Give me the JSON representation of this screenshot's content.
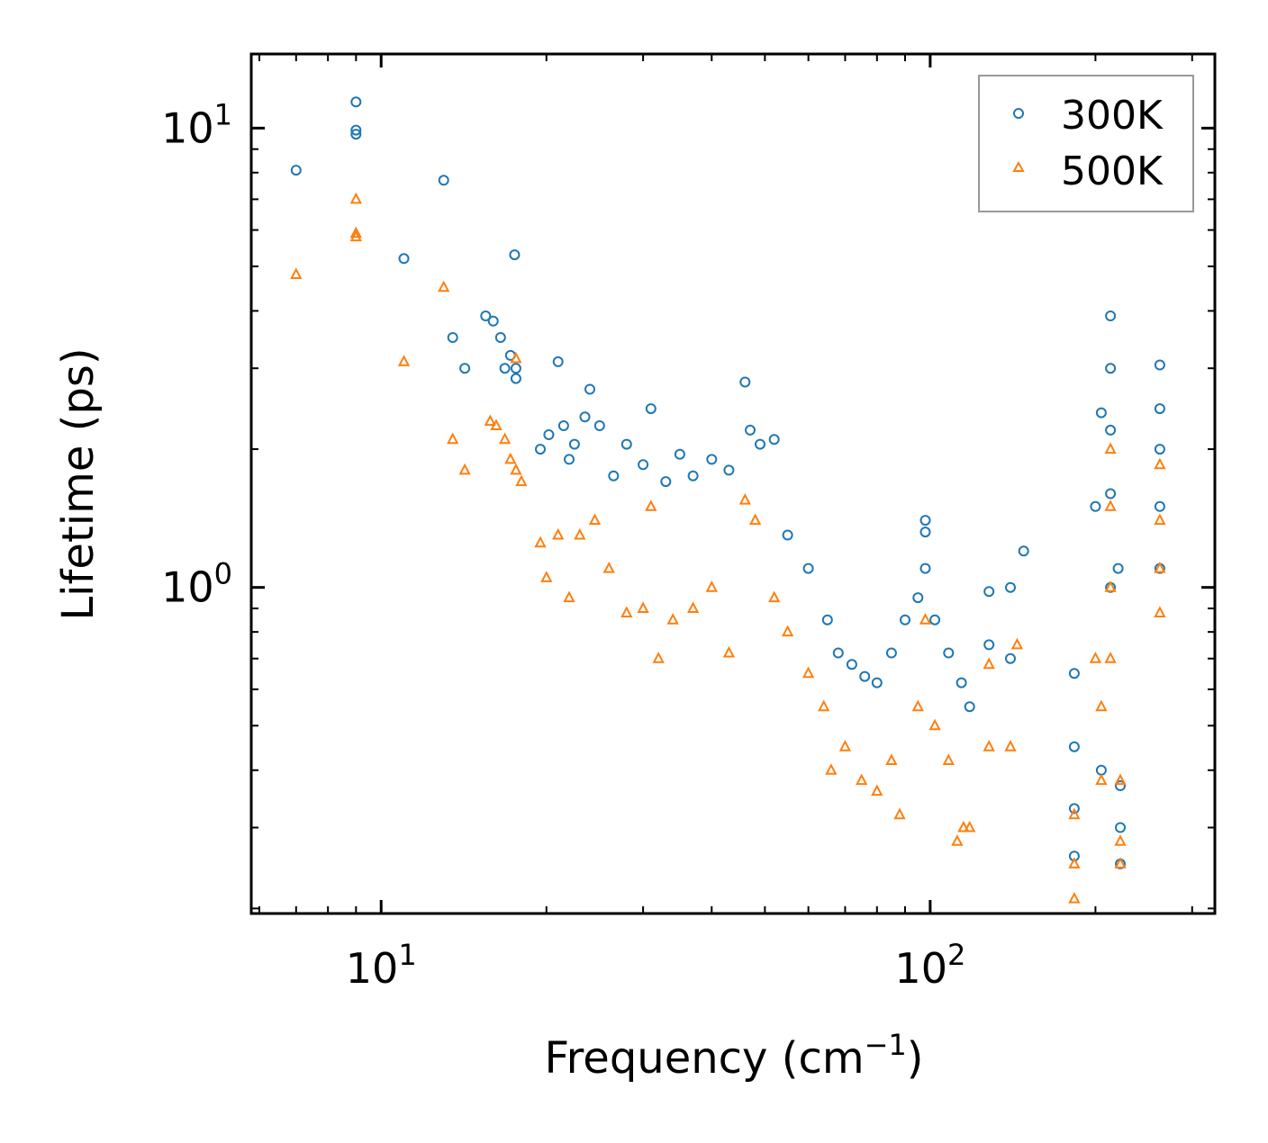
{
  "chart_data": {
    "type": "scatter",
    "title": "",
    "xlabel": "Frequency (cm",
    "xlabel_sup": "−1",
    "xlabel_close": ")",
    "ylabel": "Lifetime (ps)",
    "x_scale": "log",
    "y_scale": "log",
    "xlim": [
      5.8,
      330
    ],
    "ylim": [
      0.195,
      14.5
    ],
    "legend_position": "top-right",
    "x_ticks": [
      {
        "base": "10",
        "exp": "1",
        "value": 10
      },
      {
        "base": "10",
        "exp": "2",
        "value": 100
      }
    ],
    "y_ticks": [
      {
        "base": "10",
        "exp": "0",
        "value": 1
      },
      {
        "base": "10",
        "exp": "1",
        "value": 10
      }
    ],
    "series": [
      {
        "name": "300K",
        "color": "#1f77b4",
        "marker": "circle",
        "points": [
          [
            7.0,
            8.1
          ],
          [
            9.0,
            11.4
          ],
          [
            9.0,
            9.9
          ],
          [
            9.0,
            9.7
          ],
          [
            11.0,
            5.2
          ],
          [
            13.0,
            7.7
          ],
          [
            13.5,
            3.5
          ],
          [
            14.2,
            3.0
          ],
          [
            15.5,
            3.9
          ],
          [
            16.0,
            3.8
          ],
          [
            16.5,
            3.5
          ],
          [
            16.8,
            3.0
          ],
          [
            17.2,
            3.2
          ],
          [
            17.6,
            2.85
          ],
          [
            17.6,
            3.0
          ],
          [
            17.5,
            5.3
          ],
          [
            19.5,
            2.0
          ],
          [
            20.2,
            2.15
          ],
          [
            21.0,
            3.1
          ],
          [
            21.5,
            2.25
          ],
          [
            22.0,
            1.9
          ],
          [
            22.5,
            2.05
          ],
          [
            23.5,
            2.35
          ],
          [
            24.0,
            2.7
          ],
          [
            25.0,
            2.25
          ],
          [
            26.5,
            1.75
          ],
          [
            28.0,
            2.05
          ],
          [
            30.0,
            1.85
          ],
          [
            31.0,
            2.45
          ],
          [
            33.0,
            1.7
          ],
          [
            35.0,
            1.95
          ],
          [
            37.0,
            1.75
          ],
          [
            40.0,
            1.9
          ],
          [
            43.0,
            1.8
          ],
          [
            46.0,
            2.8
          ],
          [
            47.0,
            2.2
          ],
          [
            49.0,
            2.05
          ],
          [
            52.0,
            2.1
          ],
          [
            55.0,
            1.3
          ],
          [
            60.0,
            1.1
          ],
          [
            65.0,
            0.85
          ],
          [
            68.0,
            0.72
          ],
          [
            72.0,
            0.68
          ],
          [
            76.0,
            0.64
          ],
          [
            80.0,
            0.62
          ],
          [
            85.0,
            0.72
          ],
          [
            90.0,
            0.85
          ],
          [
            95.0,
            0.95
          ],
          [
            98.0,
            1.4
          ],
          [
            98.0,
            1.32
          ],
          [
            98.0,
            1.1
          ],
          [
            102.0,
            0.85
          ],
          [
            108.0,
            0.72
          ],
          [
            114.0,
            0.62
          ],
          [
            118.0,
            0.55
          ],
          [
            128.0,
            0.98
          ],
          [
            128.0,
            0.75
          ],
          [
            140.0,
            1.0
          ],
          [
            140.0,
            0.7
          ],
          [
            148.0,
            1.2
          ],
          [
            183.0,
            0.65
          ],
          [
            183.0,
            0.45
          ],
          [
            183.0,
            0.33
          ],
          [
            183.0,
            0.26
          ],
          [
            200.0,
            1.5
          ],
          [
            205.0,
            2.4
          ],
          [
            205.0,
            0.4
          ],
          [
            213.0,
            3.9
          ],
          [
            213.0,
            3.0
          ],
          [
            213.0,
            2.2
          ],
          [
            213.0,
            1.6
          ],
          [
            213.0,
            1.0
          ],
          [
            220.0,
            1.1
          ],
          [
            222.0,
            0.37
          ],
          [
            222.0,
            0.3
          ],
          [
            222.0,
            0.25
          ],
          [
            262.0,
            3.05
          ],
          [
            262.0,
            2.45
          ],
          [
            262.0,
            2.0
          ],
          [
            262.0,
            1.5
          ],
          [
            262.0,
            1.1
          ]
        ]
      },
      {
        "name": "500K",
        "color": "#ff7f0e",
        "marker": "triangle",
        "points": [
          [
            7.0,
            4.8
          ],
          [
            9.0,
            7.0
          ],
          [
            9.0,
            5.9
          ],
          [
            9.0,
            5.8
          ],
          [
            11.0,
            3.1
          ],
          [
            13.0,
            4.5
          ],
          [
            13.5,
            2.1
          ],
          [
            14.2,
            1.8
          ],
          [
            15.8,
            2.3
          ],
          [
            16.2,
            2.25
          ],
          [
            16.8,
            2.1
          ],
          [
            17.2,
            1.9
          ],
          [
            17.6,
            1.8
          ],
          [
            17.6,
            3.15
          ],
          [
            18.0,
            1.7
          ],
          [
            19.5,
            1.25
          ],
          [
            20.0,
            1.05
          ],
          [
            21.0,
            1.3
          ],
          [
            22.0,
            0.95
          ],
          [
            23.0,
            1.3
          ],
          [
            24.5,
            1.4
          ],
          [
            26.0,
            1.1
          ],
          [
            28.0,
            0.88
          ],
          [
            30.0,
            0.9
          ],
          [
            31.0,
            1.5
          ],
          [
            32.0,
            0.7
          ],
          [
            34.0,
            0.85
          ],
          [
            37.0,
            0.9
          ],
          [
            40.0,
            1.0
          ],
          [
            43.0,
            0.72
          ],
          [
            46.0,
            1.55
          ],
          [
            48.0,
            1.4
          ],
          [
            52.0,
            0.95
          ],
          [
            55.0,
            0.8
          ],
          [
            60.0,
            0.65
          ],
          [
            64.0,
            0.55
          ],
          [
            66.0,
            0.4
          ],
          [
            70.0,
            0.45
          ],
          [
            75.0,
            0.38
          ],
          [
            80.0,
            0.36
          ],
          [
            85.0,
            0.42
          ],
          [
            88.0,
            0.32
          ],
          [
            95.0,
            0.55
          ],
          [
            98.0,
            0.85
          ],
          [
            102.0,
            0.5
          ],
          [
            108.0,
            0.42
          ],
          [
            112.0,
            0.28
          ],
          [
            115.0,
            0.3
          ],
          [
            118.0,
            0.3
          ],
          [
            128.0,
            0.68
          ],
          [
            128.0,
            0.45
          ],
          [
            140.0,
            0.45
          ],
          [
            144.0,
            0.75
          ],
          [
            183.0,
            0.32
          ],
          [
            183.0,
            0.25
          ],
          [
            183.0,
            0.21
          ],
          [
            200.0,
            0.7
          ],
          [
            205.0,
            0.55
          ],
          [
            205.0,
            0.38
          ],
          [
            213.0,
            2.0
          ],
          [
            213.0,
            1.5
          ],
          [
            213.0,
            1.0
          ],
          [
            213.0,
            0.7
          ],
          [
            222.0,
            0.38
          ],
          [
            222.0,
            0.28
          ],
          [
            222.0,
            0.25
          ],
          [
            262.0,
            1.85
          ],
          [
            262.0,
            1.4
          ],
          [
            262.0,
            1.1
          ],
          [
            262.0,
            0.88
          ]
        ]
      }
    ]
  }
}
